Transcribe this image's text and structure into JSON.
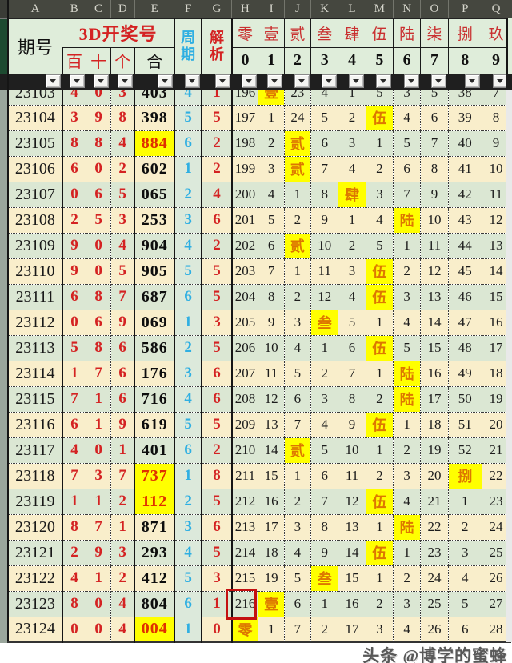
{
  "sheet": {
    "column_letters": [
      "A",
      "B",
      "C",
      "D",
      "E",
      "F",
      "G",
      "H",
      "I",
      "J",
      "K",
      "L",
      "M",
      "N",
      "O",
      "P",
      "Q"
    ],
    "header": {
      "period_label": "期号",
      "group_label": "3D开奖号",
      "sub_labels": [
        "百",
        "十",
        "个",
        "合"
      ],
      "cycle_label": "周期",
      "analysis_label": "解析",
      "numerals": [
        "零",
        "壹",
        "贰",
        "叁",
        "肆",
        "伍",
        "陆",
        "柒",
        "捌",
        "玖"
      ],
      "digits": [
        "0",
        "1",
        "2",
        "3",
        "4",
        "5",
        "6",
        "7",
        "8",
        "9"
      ]
    },
    "colors": {
      "highlight_yellow": "#ffff00",
      "digit_red": "#d42222",
      "sum_highlight_red": "#e03000",
      "cycle_cyan": "#2fafe2",
      "hit_orange": "#dd7700",
      "box_red": "#c41010"
    },
    "rows": [
      {
        "period": "23103",
        "hundreds": "4",
        "tens": "0",
        "units": "3",
        "sum": "403",
        "sum_highlight": false,
        "cycle": "4",
        "analysis": "1",
        "partial": true,
        "misses": [
          "196",
          "壹",
          "23",
          "4",
          "1",
          "5",
          "3",
          "5",
          "38",
          "7"
        ]
      },
      {
        "period": "23104",
        "hundreds": "3",
        "tens": "9",
        "units": "8",
        "sum": "398",
        "sum_highlight": false,
        "cycle": "5",
        "analysis": "5",
        "partial": false,
        "misses": [
          "197",
          "1",
          "24",
          "5",
          "2",
          "伍",
          "4",
          "6",
          "39",
          "8"
        ]
      },
      {
        "period": "23105",
        "hundreds": "8",
        "tens": "8",
        "units": "4",
        "sum": "884",
        "sum_highlight": true,
        "cycle": "6",
        "analysis": "2",
        "partial": false,
        "misses": [
          "198",
          "2",
          "贰",
          "6",
          "3",
          "1",
          "5",
          "7",
          "40",
          "9"
        ]
      },
      {
        "period": "23106",
        "hundreds": "6",
        "tens": "0",
        "units": "2",
        "sum": "602",
        "sum_highlight": false,
        "cycle": "1",
        "analysis": "2",
        "partial": false,
        "misses": [
          "199",
          "3",
          "贰",
          "7",
          "4",
          "2",
          "6",
          "8",
          "41",
          "10"
        ]
      },
      {
        "period": "23107",
        "hundreds": "0",
        "tens": "6",
        "units": "5",
        "sum": "065",
        "sum_highlight": false,
        "cycle": "2",
        "analysis": "4",
        "partial": false,
        "misses": [
          "200",
          "4",
          "1",
          "8",
          "肆",
          "3",
          "7",
          "9",
          "42",
          "11"
        ]
      },
      {
        "period": "23108",
        "hundreds": "2",
        "tens": "5",
        "units": "3",
        "sum": "253",
        "sum_highlight": false,
        "cycle": "3",
        "analysis": "6",
        "partial": false,
        "misses": [
          "201",
          "5",
          "2",
          "9",
          "1",
          "4",
          "陆",
          "10",
          "43",
          "12"
        ]
      },
      {
        "period": "23109",
        "hundreds": "9",
        "tens": "0",
        "units": "4",
        "sum": "904",
        "sum_highlight": false,
        "cycle": "4",
        "analysis": "2",
        "partial": false,
        "misses": [
          "202",
          "6",
          "贰",
          "10",
          "2",
          "5",
          "1",
          "11",
          "44",
          "13"
        ]
      },
      {
        "period": "23110",
        "hundreds": "9",
        "tens": "0",
        "units": "5",
        "sum": "905",
        "sum_highlight": false,
        "cycle": "5",
        "analysis": "5",
        "partial": false,
        "misses": [
          "203",
          "7",
          "1",
          "11",
          "3",
          "伍",
          "2",
          "12",
          "45",
          "14"
        ]
      },
      {
        "period": "23111",
        "hundreds": "6",
        "tens": "8",
        "units": "7",
        "sum": "687",
        "sum_highlight": false,
        "cycle": "6",
        "analysis": "5",
        "partial": false,
        "misses": [
          "204",
          "8",
          "2",
          "12",
          "4",
          "伍",
          "3",
          "13",
          "46",
          "15"
        ]
      },
      {
        "period": "23112",
        "hundreds": "0",
        "tens": "6",
        "units": "9",
        "sum": "069",
        "sum_highlight": false,
        "cycle": "1",
        "analysis": "3",
        "partial": false,
        "misses": [
          "205",
          "9",
          "3",
          "叁",
          "5",
          "1",
          "4",
          "14",
          "47",
          "16"
        ]
      },
      {
        "period": "23113",
        "hundreds": "5",
        "tens": "8",
        "units": "6",
        "sum": "586",
        "sum_highlight": false,
        "cycle": "2",
        "analysis": "5",
        "partial": false,
        "misses": [
          "206",
          "10",
          "4",
          "1",
          "6",
          "伍",
          "5",
          "15",
          "48",
          "17"
        ]
      },
      {
        "period": "23114",
        "hundreds": "1",
        "tens": "7",
        "units": "6",
        "sum": "176",
        "sum_highlight": false,
        "cycle": "3",
        "analysis": "6",
        "partial": false,
        "misses": [
          "207",
          "11",
          "5",
          "2",
          "7",
          "1",
          "陆",
          "16",
          "49",
          "18"
        ]
      },
      {
        "period": "23115",
        "hundreds": "7",
        "tens": "1",
        "units": "6",
        "sum": "716",
        "sum_highlight": false,
        "cycle": "4",
        "analysis": "6",
        "partial": false,
        "misses": [
          "208",
          "12",
          "6",
          "3",
          "8",
          "2",
          "陆",
          "17",
          "50",
          "19"
        ]
      },
      {
        "period": "23116",
        "hundreds": "6",
        "tens": "1",
        "units": "9",
        "sum": "619",
        "sum_highlight": false,
        "cycle": "5",
        "analysis": "5",
        "partial": false,
        "misses": [
          "209",
          "13",
          "7",
          "4",
          "9",
          "伍",
          "1",
          "18",
          "51",
          "20"
        ]
      },
      {
        "period": "23117",
        "hundreds": "4",
        "tens": "0",
        "units": "1",
        "sum": "401",
        "sum_highlight": false,
        "cycle": "6",
        "analysis": "2",
        "partial": false,
        "misses": [
          "210",
          "14",
          "贰",
          "5",
          "10",
          "1",
          "2",
          "19",
          "52",
          "21"
        ]
      },
      {
        "period": "23118",
        "hundreds": "7",
        "tens": "3",
        "units": "7",
        "sum": "737",
        "sum_highlight": true,
        "cycle": "1",
        "analysis": "8",
        "partial": false,
        "misses": [
          "211",
          "15",
          "1",
          "6",
          "11",
          "2",
          "3",
          "20",
          "捌",
          "22"
        ]
      },
      {
        "period": "23119",
        "hundreds": "1",
        "tens": "1",
        "units": "2",
        "sum": "112",
        "sum_highlight": true,
        "cycle": "2",
        "analysis": "5",
        "partial": false,
        "misses": [
          "212",
          "16",
          "2",
          "7",
          "12",
          "伍",
          "4",
          "21",
          "1",
          "23"
        ]
      },
      {
        "period": "23120",
        "hundreds": "8",
        "tens": "7",
        "units": "1",
        "sum": "871",
        "sum_highlight": false,
        "cycle": "3",
        "analysis": "6",
        "partial": false,
        "misses": [
          "213",
          "17",
          "3",
          "8",
          "13",
          "1",
          "陆",
          "22",
          "2",
          "24"
        ]
      },
      {
        "period": "23121",
        "hundreds": "2",
        "tens": "9",
        "units": "3",
        "sum": "293",
        "sum_highlight": false,
        "cycle": "4",
        "analysis": "5",
        "partial": false,
        "misses": [
          "214",
          "18",
          "4",
          "9",
          "14",
          "伍",
          "1",
          "23",
          "3",
          "25"
        ]
      },
      {
        "period": "23122",
        "hundreds": "4",
        "tens": "1",
        "units": "2",
        "sum": "412",
        "sum_highlight": false,
        "cycle": "5",
        "analysis": "3",
        "partial": false,
        "misses": [
          "215",
          "19",
          "5",
          "叁",
          "15",
          "1",
          "2",
          "24",
          "4",
          "26"
        ]
      },
      {
        "period": "23123",
        "hundreds": "8",
        "tens": "0",
        "units": "4",
        "sum": "804",
        "sum_highlight": false,
        "cycle": "6",
        "analysis": "1",
        "partial": false,
        "misses": [
          "216",
          "壹",
          "6",
          "1",
          "16",
          "2",
          "3",
          "25",
          "5",
          "27"
        ]
      },
      {
        "period": "23124",
        "hundreds": "0",
        "tens": "0",
        "units": "4",
        "sum": "004",
        "sum_highlight": true,
        "cycle": "1",
        "analysis": "0",
        "partial": false,
        "misses": [
          "零",
          "1",
          "7",
          "2",
          "17",
          "3",
          "4",
          "26",
          "6",
          "28"
        ]
      }
    ],
    "watermark": "头条 @博学的蜜蜂"
  }
}
